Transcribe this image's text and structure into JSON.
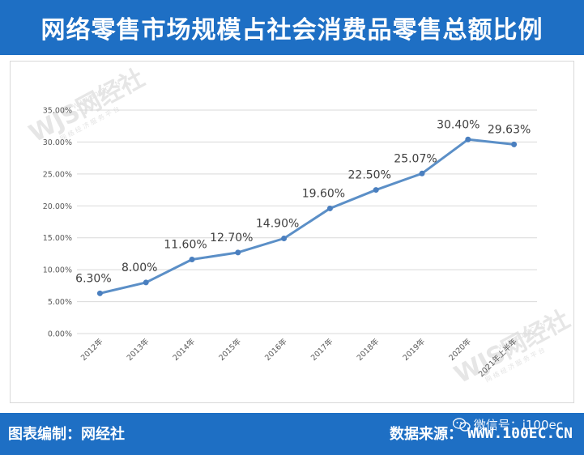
{
  "header": {
    "title": "网络零售市场规模占社会消费品零售总额比例"
  },
  "footer": {
    "left_label": "图表编制：网经社",
    "source_label": "数据来源：",
    "source_value": "WWW.100EC.CN",
    "wechat_label": "微信号：i100ec"
  },
  "watermark": {
    "logo_text": "WJS网经社",
    "url_text": "WWW.100EC.CN",
    "slogan_text": "网 络 经 济 服 务 平 台"
  },
  "chart_data": {
    "type": "line",
    "categories": [
      "2012年",
      "2013年",
      "2014年",
      "2015年",
      "2016年",
      "2017年",
      "2018年",
      "2019年",
      "2020年",
      "2021年上半年"
    ],
    "values": [
      6.3,
      8.0,
      11.6,
      12.7,
      14.9,
      19.6,
      22.5,
      25.07,
      30.4,
      29.63
    ],
    "data_labels": [
      "6.30%",
      "8.00%",
      "11.60%",
      "12.70%",
      "14.90%",
      "19.60%",
      "22.50%",
      "25.07%",
      "30.40%",
      "29.63%"
    ],
    "y_ticks": [
      "0.00%",
      "5.00%",
      "10.00%",
      "15.00%",
      "20.00%",
      "25.00%",
      "30.00%",
      "35.00%"
    ],
    "ylim": [
      0,
      35
    ],
    "title": "",
    "xlabel": "",
    "ylabel": "",
    "grid": true,
    "line_color": "#5b8fc7",
    "marker_color": "#4a7fbf"
  }
}
